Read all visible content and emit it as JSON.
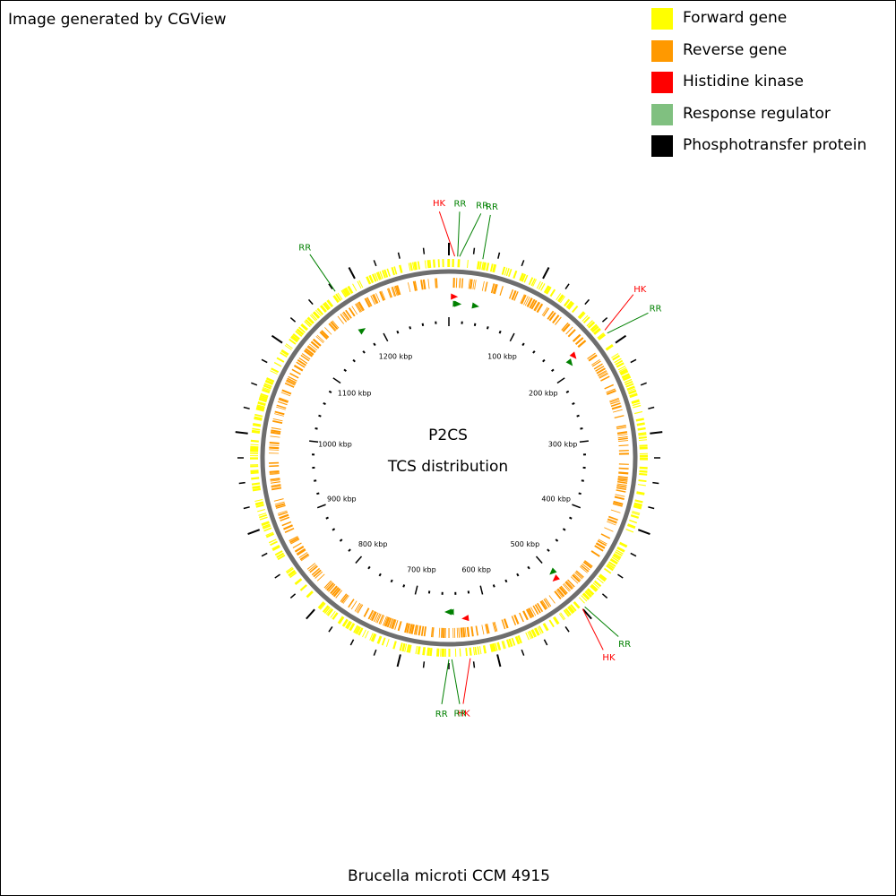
{
  "header": {
    "credit": "Image generated by CGView"
  },
  "legend": {
    "items": [
      {
        "label": "Forward gene",
        "color": "#ffff00"
      },
      {
        "label": "Reverse gene",
        "color": "#ff9900"
      },
      {
        "label": "Histidine kinase",
        "color": "#ff0000"
      },
      {
        "label": "Response regulator",
        "color": "#80c080"
      },
      {
        "label": "Phosphotransfer protein",
        "color": "#000000"
      }
    ]
  },
  "map": {
    "title_line1": "P2CS",
    "title_line2": "TCS distribution",
    "caption": "Brucella microti CCM 4915",
    "genome_length_kbp": 1300,
    "tick_labels": [
      {
        "kbp": 100,
        "text": "100 kbp"
      },
      {
        "kbp": 200,
        "text": "200 kbp"
      },
      {
        "kbp": 300,
        "text": "300 kbp"
      },
      {
        "kbp": 400,
        "text": "400 kbp"
      },
      {
        "kbp": 500,
        "text": "500 kbp"
      },
      {
        "kbp": 600,
        "text": "600 kbp"
      },
      {
        "kbp": 700,
        "text": "700 kbp"
      },
      {
        "kbp": 800,
        "text": "800 kbp"
      },
      {
        "kbp": 900,
        "text": "900 kbp"
      },
      {
        "kbp": 1000,
        "text": "1000 kbp"
      },
      {
        "kbp": 1100,
        "text": "1100 kbp"
      },
      {
        "kbp": 1200,
        "text": "1200 kbp"
      }
    ],
    "features": [
      {
        "type": "HK",
        "label": "HK",
        "kbp": 6,
        "color": "#ff0000"
      },
      {
        "type": "RR",
        "label": "RR",
        "kbp": 9,
        "color": "#008000"
      },
      {
        "type": "RR",
        "label": "RR",
        "kbp": 11,
        "color": "#008000"
      },
      {
        "type": "RR",
        "label": "RR",
        "kbp": 35,
        "color": "#008000"
      },
      {
        "type": "HK",
        "label": "HK",
        "kbp": 183,
        "color": "#ff0000"
      },
      {
        "type": "RR",
        "label": "RR",
        "kbp": 187,
        "color": "#008000"
      },
      {
        "type": "RR",
        "label": "RR",
        "kbp": 497,
        "color": "#008000"
      },
      {
        "type": "HK",
        "label": "HK",
        "kbp": 500,
        "color": "#ff0000"
      },
      {
        "type": "HK",
        "label": "HK",
        "kbp": 628,
        "color": "#ff0000"
      },
      {
        "type": "RR",
        "label": "RR",
        "kbp": 647,
        "color": "#008000"
      },
      {
        "type": "RR",
        "label": "RR",
        "kbp": 650,
        "color": "#008000"
      },
      {
        "type": "RR",
        "label": "RR",
        "kbp": 1176,
        "color": "#008000"
      }
    ]
  }
}
